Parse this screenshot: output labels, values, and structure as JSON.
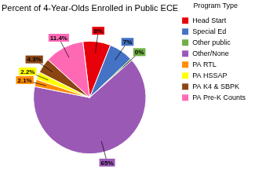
{
  "chart_data": {
    "type": "pie",
    "title": "Percent of 4-Year-Olds Enrolled in Public ECE",
    "legend_title": "Program Type",
    "categories": [
      "Head Start",
      "Special Ed",
      "Other public",
      "Other/None",
      "PA RTL",
      "PA HSSAP",
      "PA K4 & SBPK",
      "PA Pre-K Counts"
    ],
    "values": [
      8.0,
      7.0,
      0.5,
      65.0,
      2.1,
      2.2,
      4.3,
      11.4
    ],
    "value_labels": [
      "8%",
      "7%",
      "0%",
      "65%",
      "2.1%",
      "2.2%",
      "4.3%",
      "11.4%"
    ],
    "colors": [
      "#e8000a",
      "#4472c4",
      "#70ad47",
      "#9b59b6",
      "#ff8c00",
      "#ffff00",
      "#8b4513",
      "#ff69b4"
    ],
    "data_labels": true,
    "legend": "right"
  }
}
